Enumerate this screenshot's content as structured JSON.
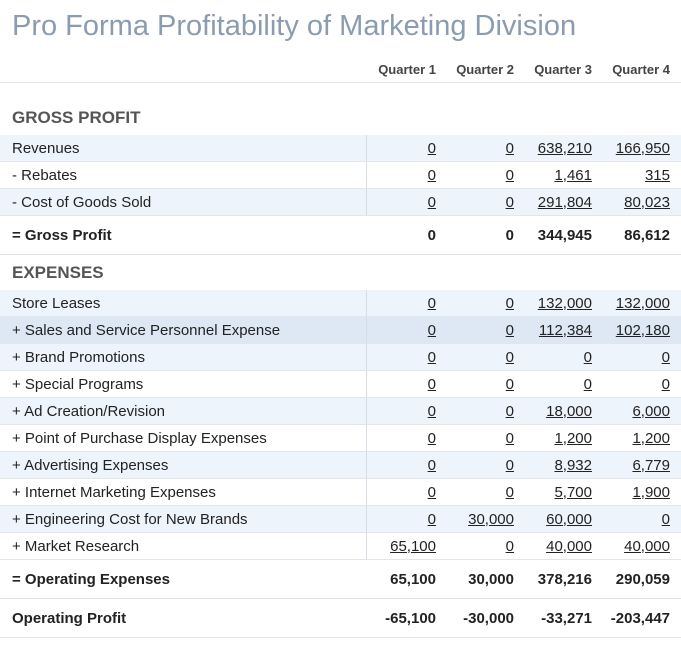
{
  "title": "Pro Forma Profitability of Marketing Division",
  "columns": [
    "Quarter 1",
    "Quarter 2",
    "Quarter 3",
    "Quarter 4"
  ],
  "sections": [
    {
      "title": "GROSS PROFIT",
      "rows": [
        {
          "label": "Revenues",
          "values": [
            "0",
            "0",
            "638,210",
            "166,950"
          ]
        },
        {
          "label": "- Rebates",
          "values": [
            "0",
            "0",
            "1,461",
            "315"
          ]
        },
        {
          "label": "- Cost of Goods Sold",
          "values": [
            "0",
            "0",
            "291,804",
            "80,023"
          ]
        }
      ],
      "total": {
        "label": "= Gross Profit",
        "values": [
          "0",
          "0",
          "344,945",
          "86,612"
        ]
      }
    },
    {
      "title": "EXPENSES",
      "rows": [
        {
          "label": "Store Leases",
          "values": [
            "0",
            "0",
            "132,000",
            "132,000"
          ]
        },
        {
          "label": "+ Sales and Service Personnel Expense",
          "values": [
            "0",
            "0",
            "112,384",
            "102,180"
          ]
        },
        {
          "label": "+ Brand Promotions",
          "values": [
            "0",
            "0",
            "0",
            "0"
          ]
        },
        {
          "label": "+ Special Programs",
          "values": [
            "0",
            "0",
            "0",
            "0"
          ]
        },
        {
          "label": "+ Ad Creation/Revision",
          "values": [
            "0",
            "0",
            "18,000",
            "6,000"
          ]
        },
        {
          "label": "+ Point of Purchase Display Expenses",
          "values": [
            "0",
            "0",
            "1,200",
            "1,200"
          ]
        },
        {
          "label": "+ Advertising Expenses",
          "values": [
            "0",
            "0",
            "8,932",
            "6,779"
          ]
        },
        {
          "label": "+ Internet Marketing Expenses",
          "values": [
            "0",
            "0",
            "5,700",
            "1,900"
          ]
        },
        {
          "label": "+ Engineering Cost for New Brands",
          "values": [
            "0",
            "30,000",
            "60,000",
            "0"
          ]
        },
        {
          "label": "+ Market Research",
          "values": [
            "65,100",
            "0",
            "40,000",
            "40,000"
          ]
        }
      ],
      "total": {
        "label": "= Operating Expenses",
        "values": [
          "65,100",
          "30,000",
          "378,216",
          "290,059"
        ]
      }
    }
  ],
  "operating_profit": {
    "label": "Operating Profit",
    "values": [
      "-65,100",
      "-30,000",
      "-33,271",
      "-203,447"
    ]
  }
}
